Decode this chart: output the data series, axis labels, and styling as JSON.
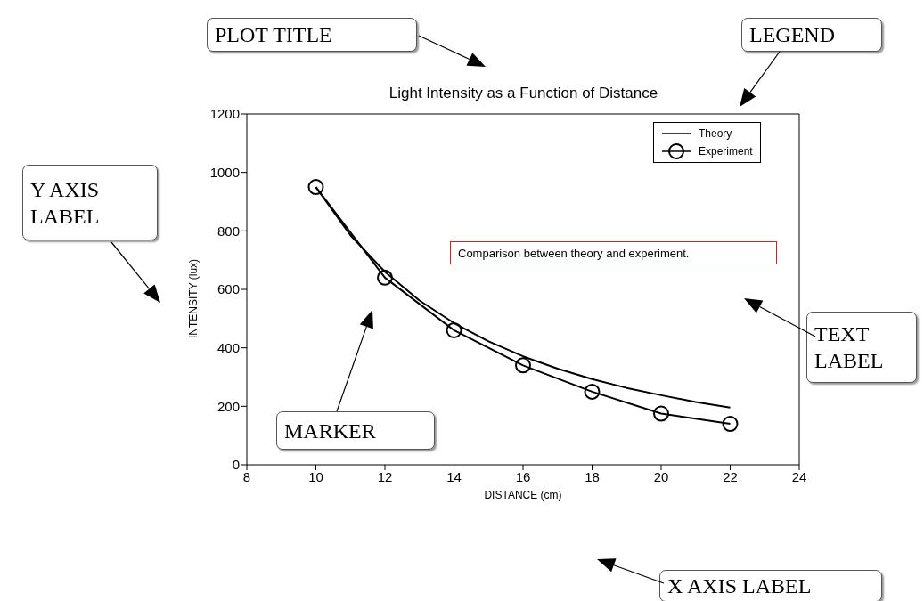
{
  "chart_data": {
    "type": "line",
    "title": "Light Intensity as a Function of Distance",
    "xlabel": "DISTANCE (cm)",
    "ylabel": "INTENSITY (lux)",
    "xlim": [
      8,
      24
    ],
    "xticks": [
      8,
      10,
      12,
      14,
      16,
      18,
      20,
      22,
      24
    ],
    "ylim": [
      0,
      1200
    ],
    "yticks": [
      0,
      200,
      400,
      600,
      800,
      1000,
      1200
    ],
    "legend": "top right",
    "series": [
      {
        "name": "Theory",
        "color": "#000000",
        "marker": "none",
        "x": [
          10,
          11,
          12,
          13,
          14,
          15,
          16,
          17,
          18,
          19,
          20,
          21,
          22
        ],
        "values": [
          950,
          785,
          660,
          562,
          485,
          422,
          371,
          329,
          293,
          263,
          238,
          215,
          196
        ]
      },
      {
        "name": "Experiment",
        "color": "#000000",
        "marker": "circle",
        "x": [
          10,
          12,
          14,
          16,
          18,
          20,
          22
        ],
        "values": [
          950,
          640,
          460,
          340,
          250,
          175,
          140
        ]
      }
    ],
    "annotations": [
      "PLOT TITLE",
      "LEGEND",
      "Y AXIS LABEL",
      "TEXT LABEL",
      "MARKER",
      "X AXIS LABEL",
      "Comparison between theory and experiment."
    ]
  }
}
